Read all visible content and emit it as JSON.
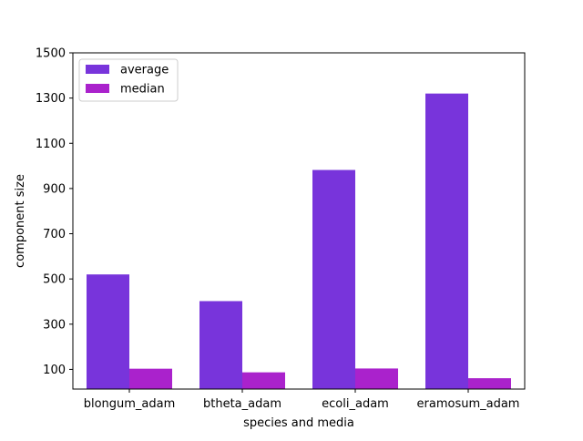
{
  "chart_data": {
    "type": "bar",
    "title": "",
    "xlabel": "species and media",
    "ylabel": "component size",
    "categories": [
      "blongum_adam",
      "btheta_adam",
      "ecoli_adam",
      "eramosum_adam"
    ],
    "series": [
      {
        "name": "average",
        "values": [
          520,
          402,
          982,
          1320
        ],
        "color": "#7834db"
      },
      {
        "name": "median",
        "values": [
          103,
          87,
          104,
          61
        ],
        "color": "#aa22cc"
      }
    ],
    "ylim": [
      13,
      1500
    ],
    "yticks": [
      100,
      300,
      500,
      700,
      900,
      1100,
      1300,
      1500
    ],
    "grid": false,
    "legend_position": "top-left"
  }
}
